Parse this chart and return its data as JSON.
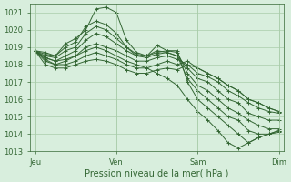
{
  "title": "",
  "xlabel": "Pression niveau de la mer( hPa )",
  "ylabel": "",
  "background_color": "#d8eedd",
  "grid_color": "#aaccaa",
  "line_color": "#336633",
  "marker": "+",
  "ylim": [
    1013,
    1021.5
  ],
  "yticks": [
    1013,
    1014,
    1015,
    1016,
    1017,
    1018,
    1019,
    1020,
    1021
  ],
  "xtick_labels": [
    "Jeu",
    "Ven",
    "Sam",
    "Dim"
  ],
  "xtick_positions": [
    0,
    8,
    16,
    24
  ],
  "lines": [
    [
      1018.8,
      1018.7,
      1018.5,
      1019.2,
      1019.5,
      1020.0,
      1021.2,
      1021.3,
      1021.0,
      1019.4,
      1018.7,
      1018.5,
      1019.1,
      1018.8,
      1018.8,
      1017.0,
      1016.0,
      1015.5,
      1015.0,
      1014.5,
      1014.0,
      1013.5,
      1013.8,
      1014.0,
      1014.2
    ],
    [
      1018.8,
      1018.6,
      1018.5,
      1019.0,
      1019.3,
      1020.2,
      1020.5,
      1020.3,
      1019.8,
      1019.0,
      1018.5,
      1018.5,
      1018.8,
      1018.7,
      1018.5,
      1017.2,
      1016.5,
      1016.0,
      1015.5,
      1015.0,
      1014.8,
      1014.2,
      1014.0,
      1014.0,
      1014.1
    ],
    [
      1018.8,
      1018.5,
      1018.4,
      1018.8,
      1019.0,
      1019.8,
      1020.2,
      1020.0,
      1019.5,
      1019.0,
      1018.6,
      1018.5,
      1018.7,
      1018.8,
      1018.7,
      1017.5,
      1016.8,
      1016.5,
      1016.0,
      1015.5,
      1015.2,
      1014.8,
      1014.5,
      1014.3,
      1014.3
    ],
    [
      1018.8,
      1018.4,
      1018.2,
      1018.5,
      1018.8,
      1019.4,
      1019.8,
      1019.6,
      1019.2,
      1018.8,
      1018.5,
      1018.4,
      1018.6,
      1018.7,
      1018.5,
      1017.8,
      1017.2,
      1017.0,
      1016.5,
      1016.0,
      1015.8,
      1015.2,
      1015.0,
      1014.8,
      1014.8
    ],
    [
      1018.8,
      1018.3,
      1018.0,
      1018.2,
      1018.5,
      1019.0,
      1019.2,
      1019.0,
      1018.8,
      1018.5,
      1018.2,
      1018.2,
      1018.4,
      1018.5,
      1018.3,
      1018.0,
      1017.5,
      1017.3,
      1017.0,
      1016.5,
      1016.2,
      1015.8,
      1015.5,
      1015.3,
      1015.2
    ],
    [
      1018.8,
      1018.2,
      1018.0,
      1018.0,
      1018.2,
      1018.5,
      1018.7,
      1018.5,
      1018.3,
      1018.0,
      1017.8,
      1017.8,
      1018.0,
      1018.2,
      1018.0,
      1018.2,
      1017.8,
      1017.5,
      1017.2,
      1016.8,
      1016.5,
      1016.0,
      1015.8,
      1015.5,
      1015.3
    ],
    [
      1018.8,
      1018.0,
      1017.8,
      1017.8,
      1018.0,
      1018.2,
      1018.3,
      1018.2,
      1018.0,
      1017.7,
      1017.5,
      1017.5,
      1017.7,
      1017.8,
      1017.7,
      1018.0,
      1017.8,
      1017.5,
      1017.2,
      1016.8,
      1016.5,
      1016.0,
      1015.8,
      1015.5,
      1015.3
    ],
    [
      1018.8,
      1018.4,
      1018.2,
      1018.3,
      1018.5,
      1018.8,
      1019.0,
      1018.8,
      1018.5,
      1018.2,
      1018.0,
      1017.8,
      1017.5,
      1017.2,
      1016.8,
      1016.0,
      1015.3,
      1014.8,
      1014.2,
      1013.5,
      1013.2,
      1013.5,
      1013.8,
      1014.0,
      1014.2
    ]
  ]
}
